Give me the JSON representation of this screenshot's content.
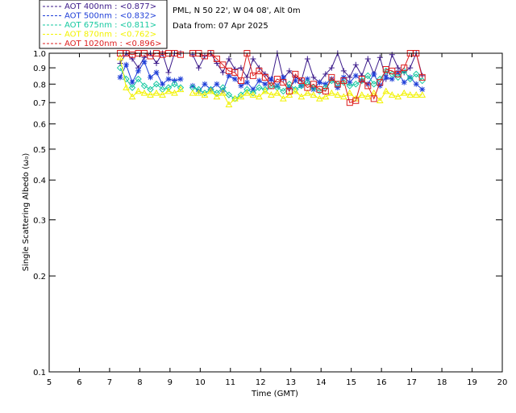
{
  "header": {
    "site_line": "PML, N 50 22', W 04 08', Alt 0m",
    "date_line": "Data from: 07 Apr 2025"
  },
  "chart_data": {
    "type": "scatter",
    "xlabel": "Time (GMT)",
    "ylabel": "Single Scattering Albedo (ω₀)",
    "xlim": [
      5,
      20
    ],
    "ylim": [
      0.1,
      1.0
    ],
    "y_scale": "log",
    "x_ticks": [
      "5",
      "6",
      "7",
      "8",
      "9",
      "10",
      "11",
      "12",
      "13",
      "14",
      "15",
      "16",
      "17",
      "18",
      "19",
      "20"
    ],
    "y_ticks": [
      {
        "value": 1.0,
        "label": "1.0"
      },
      {
        "value": 0.9,
        "label": "0.9"
      },
      {
        "value": 0.8,
        "label": "0.8"
      },
      {
        "value": 0.7,
        "label": "0.7"
      },
      {
        "value": 0.6,
        "label": "0.6"
      },
      {
        "value": 0.5,
        "label": "0.5"
      },
      {
        "value": 0.4,
        "label": "0.4"
      },
      {
        "value": 0.3,
        "label": "0.3"
      },
      {
        "value": 0.2,
        "label": "0.2"
      },
      {
        "value": 0.1,
        "label": "0.1"
      }
    ],
    "legend_position": "top-left",
    "series": [
      {
        "name": "AOT  400nm : <0.877>",
        "color": "#3b1a8a",
        "marker": "plus",
        "x": [
          7.35,
          7.55,
          7.75,
          7.95,
          8.15,
          8.35,
          8.55,
          8.75,
          8.95,
          9.15,
          9.35,
          9.75,
          9.95,
          10.15,
          10.35,
          10.55,
          10.75,
          10.95,
          11.15,
          11.35,
          11.55,
          11.75,
          11.95,
          12.15,
          12.35,
          12.55,
          12.75,
          12.95,
          13.15,
          13.35,
          13.55,
          13.75,
          13.95,
          14.15,
          14.35,
          14.55,
          14.75,
          14.95,
          15.15,
          15.35,
          15.55,
          15.75,
          15.95,
          16.15,
          16.35,
          16.55,
          16.75,
          16.95,
          17.15,
          17.35
        ],
        "y": [
          0.93,
          1.0,
          0.96,
          0.9,
          0.97,
          1.0,
          0.93,
          1.0,
          0.87,
          1.0,
          1.0,
          0.99,
          0.9,
          0.98,
          1.0,
          0.93,
          0.87,
          0.96,
          0.89,
          0.9,
          0.84,
          0.96,
          0.9,
          0.86,
          0.82,
          1.0,
          0.83,
          0.88,
          0.84,
          0.82,
          0.96,
          0.84,
          0.81,
          0.86,
          0.9,
          1.0,
          0.88,
          0.84,
          0.92,
          0.85,
          0.96,
          0.86,
          0.97,
          0.83,
          0.99,
          0.9,
          0.87,
          0.9,
          1.0,
          0.85
        ]
      },
      {
        "name": "AOT  500nm : <0.832>",
        "color": "#1f3fd8",
        "marker": "star",
        "x": [
          7.35,
          7.55,
          7.75,
          7.95,
          8.15,
          8.35,
          8.55,
          8.75,
          8.95,
          9.15,
          9.35,
          9.75,
          9.95,
          10.15,
          10.35,
          10.55,
          10.75,
          10.95,
          11.15,
          11.35,
          11.55,
          11.75,
          11.95,
          12.15,
          12.35,
          12.55,
          12.75,
          12.95,
          13.15,
          13.35,
          13.55,
          13.75,
          13.95,
          14.15,
          14.35,
          14.55,
          14.75,
          14.95,
          15.15,
          15.35,
          15.55,
          15.75,
          15.95,
          16.15,
          16.35,
          16.55,
          16.75,
          16.95,
          17.15,
          17.35
        ],
        "y": [
          0.84,
          0.92,
          0.81,
          0.88,
          0.94,
          0.84,
          0.87,
          0.8,
          0.83,
          0.82,
          0.83,
          0.79,
          0.76,
          0.8,
          0.77,
          0.8,
          0.76,
          0.85,
          0.83,
          0.79,
          0.81,
          0.77,
          0.82,
          0.8,
          0.83,
          0.79,
          0.84,
          0.78,
          0.82,
          0.79,
          0.83,
          0.77,
          0.81,
          0.8,
          0.83,
          0.78,
          0.84,
          0.81,
          0.85,
          0.82,
          0.8,
          0.86,
          0.79,
          0.84,
          0.83,
          0.87,
          0.81,
          0.84,
          0.8,
          0.77
        ]
      },
      {
        "name": "AOT  675nm : <0.811>",
        "color": "#16c9a0",
        "marker": "diamond",
        "x": [
          7.35,
          7.55,
          7.75,
          7.95,
          8.15,
          8.35,
          8.55,
          8.75,
          8.95,
          9.15,
          9.35,
          9.75,
          9.95,
          10.15,
          10.35,
          10.55,
          10.75,
          10.95,
          11.15,
          11.35,
          11.55,
          11.75,
          11.95,
          12.15,
          12.35,
          12.55,
          12.75,
          12.95,
          13.15,
          13.35,
          13.55,
          13.75,
          13.95,
          14.15,
          14.35,
          14.55,
          14.75,
          14.95,
          15.15,
          15.35,
          15.55,
          15.75,
          15.95,
          16.15,
          16.35,
          16.55,
          16.75,
          16.95,
          17.15,
          17.35
        ],
        "y": [
          0.9,
          0.83,
          0.78,
          0.83,
          0.79,
          0.77,
          0.8,
          0.77,
          0.78,
          0.8,
          0.78,
          0.78,
          0.77,
          0.75,
          0.77,
          0.75,
          0.78,
          0.74,
          0.72,
          0.74,
          0.77,
          0.75,
          0.78,
          0.77,
          0.79,
          0.78,
          0.76,
          0.8,
          0.77,
          0.79,
          0.81,
          0.78,
          0.76,
          0.78,
          0.82,
          0.8,
          0.81,
          0.79,
          0.8,
          0.82,
          0.85,
          0.8,
          0.83,
          0.88,
          0.86,
          0.84,
          0.88,
          0.83,
          0.86,
          0.82
        ]
      },
      {
        "name": "AOT  870nm : <0.762>",
        "color": "#f2f200",
        "marker": "triangle",
        "x": [
          7.35,
          7.55,
          7.75,
          7.95,
          8.15,
          8.35,
          8.55,
          8.75,
          8.95,
          9.15,
          9.35,
          9.75,
          9.95,
          10.15,
          10.35,
          10.55,
          10.75,
          10.95,
          11.15,
          11.35,
          11.55,
          11.75,
          11.95,
          12.15,
          12.35,
          12.55,
          12.75,
          12.95,
          13.15,
          13.35,
          13.55,
          13.75,
          13.95,
          14.15,
          14.35,
          14.55,
          14.75,
          14.95,
          15.15,
          15.35,
          15.55,
          15.75,
          15.95,
          16.15,
          16.35,
          16.55,
          16.75,
          16.95,
          17.15,
          17.35
        ],
        "y": [
          0.97,
          0.78,
          0.73,
          0.76,
          0.75,
          0.74,
          0.75,
          0.74,
          0.76,
          0.75,
          0.77,
          0.75,
          0.75,
          0.74,
          0.76,
          0.73,
          0.75,
          0.69,
          0.72,
          0.73,
          0.75,
          0.74,
          0.73,
          0.76,
          0.74,
          0.75,
          0.72,
          0.74,
          0.76,
          0.73,
          0.75,
          0.74,
          0.72,
          0.73,
          0.75,
          0.74,
          0.73,
          0.75,
          0.72,
          0.74,
          0.73,
          0.75,
          0.71,
          0.76,
          0.74,
          0.73,
          0.75,
          0.74,
          0.74,
          0.74
        ]
      },
      {
        "name": "AOT 1020nm : <0.896>",
        "color": "#dd1f1f",
        "marker": "square",
        "x": [
          7.35,
          7.55,
          7.75,
          7.95,
          8.15,
          8.35,
          8.55,
          8.75,
          8.95,
          9.15,
          9.35,
          9.75,
          9.95,
          10.15,
          10.35,
          10.55,
          10.75,
          10.95,
          11.15,
          11.35,
          11.55,
          11.75,
          11.95,
          12.15,
          12.35,
          12.55,
          12.75,
          12.95,
          13.15,
          13.35,
          13.55,
          13.75,
          13.95,
          14.15,
          14.35,
          14.55,
          14.75,
          14.95,
          15.15,
          15.35,
          15.55,
          15.75,
          15.95,
          16.15,
          16.35,
          16.55,
          16.75,
          16.95,
          17.15,
          17.35
        ],
        "y": [
          1.0,
          1.0,
          0.99,
          1.0,
          1.0,
          0.98,
          1.0,
          0.99,
          1.0,
          1.0,
          0.99,
          1.0,
          1.0,
          0.98,
          1.0,
          0.96,
          0.92,
          0.88,
          0.87,
          0.82,
          1.0,
          0.85,
          0.88,
          0.84,
          0.79,
          0.83,
          0.81,
          0.76,
          0.86,
          0.82,
          0.78,
          0.8,
          0.77,
          0.76,
          0.84,
          0.8,
          0.82,
          0.7,
          0.71,
          0.83,
          0.79,
          0.72,
          0.81,
          0.89,
          0.88,
          0.86,
          0.9,
          1.0,
          1.0,
          0.84
        ]
      }
    ]
  }
}
